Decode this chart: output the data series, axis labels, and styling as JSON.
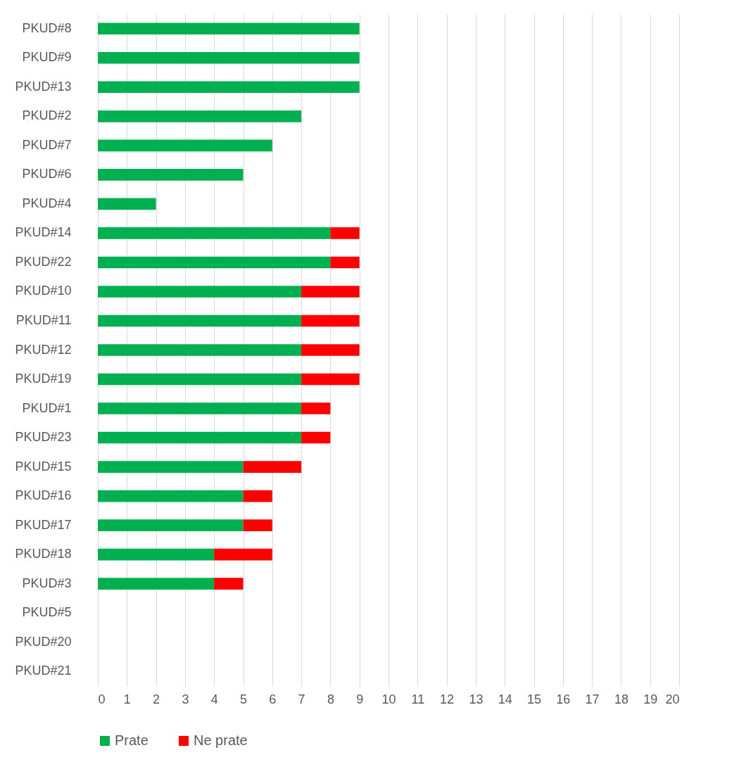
{
  "chart_data": {
    "type": "bar",
    "orientation": "horizontal",
    "stacked": true,
    "categories": [
      "PKUD#8",
      "PKUD#9",
      "PKUD#13",
      "PKUD#2",
      "PKUD#7",
      "PKUD#6",
      "PKUD#4",
      "PKUD#14",
      "PKUD#22",
      "PKUD#10",
      "PKUD#11",
      "PKUD#12",
      "PKUD#19",
      "PKUD#1",
      "PKUD#23",
      "PKUD#15",
      "PKUD#16",
      "PKUD#17",
      "PKUD#18",
      "PKUD#3",
      "PKUD#5",
      "PKUD#20",
      "PKUD#21"
    ],
    "series": [
      {
        "name": "Prate",
        "color": "#00b050",
        "values": [
          9,
          9,
          9,
          7,
          6,
          5,
          2,
          8,
          8,
          7,
          7,
          7,
          7,
          7,
          7,
          5,
          5,
          5,
          4,
          4,
          0,
          0,
          0
        ]
      },
      {
        "name": "Ne prate",
        "color": "#ff0000",
        "values": [
          0,
          0,
          0,
          0,
          0,
          0,
          0,
          1,
          1,
          2,
          2,
          2,
          2,
          1,
          1,
          2,
          1,
          1,
          2,
          1,
          0,
          0,
          0
        ]
      }
    ],
    "xlim": [
      0,
      20
    ],
    "xticks": [
      0,
      1,
      2,
      3,
      4,
      5,
      6,
      7,
      8,
      9,
      10,
      11,
      12,
      13,
      14,
      15,
      16,
      17,
      18,
      19,
      20
    ],
    "grid": "x",
    "legend": "bottom"
  }
}
